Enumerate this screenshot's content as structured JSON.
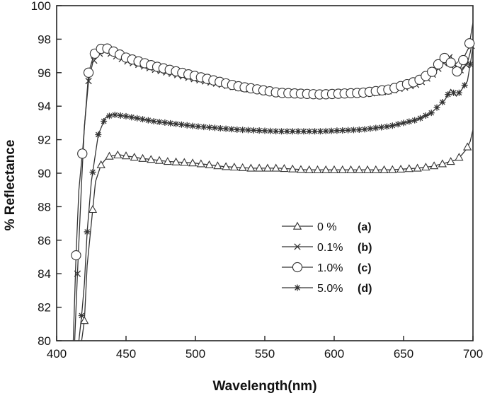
{
  "chart_data": {
    "type": "line",
    "title": "",
    "xlabel": "Wavelength(nm)",
    "ylabel": "% Reflectance",
    "xlim": [
      400,
      700
    ],
    "ylim": [
      80,
      100
    ],
    "xticks": [
      400,
      450,
      500,
      550,
      600,
      650,
      700
    ],
    "yticks": [
      80,
      82,
      84,
      86,
      88,
      90,
      92,
      94,
      96,
      98,
      100
    ],
    "grid": false,
    "legend_position": "bottom-center",
    "series": [
      {
        "name": "0 %",
        "tag": "(a)",
        "marker": "triangle",
        "color": "#333333",
        "x": [
          415,
          418,
          420,
          422,
          425,
          428,
          432,
          437,
          445,
          460,
          480,
          500,
          520,
          540,
          560,
          580,
          600,
          620,
          640,
          660,
          670,
          680,
          688,
          692,
          695,
          698,
          700
        ],
        "y": [
          80,
          80,
          81.2,
          84.5,
          87.0,
          89.5,
          90.5,
          91.0,
          91.1,
          90.9,
          90.7,
          90.6,
          90.4,
          90.3,
          90.3,
          90.2,
          90.2,
          90.2,
          90.2,
          90.3,
          90.4,
          90.6,
          90.8,
          91.1,
          91.4,
          91.9,
          92.6
        ]
      },
      {
        "name": "0.1%",
        "tag": "(b)",
        "marker": "x",
        "color": "#333333",
        "x": [
          413,
          415,
          418,
          420,
          423,
          426,
          430,
          435,
          440,
          450,
          470,
          500,
          530,
          560,
          590,
          620,
          640,
          660,
          670,
          678,
          684,
          688,
          692,
          696,
          698,
          700
        ],
        "y": [
          80,
          84.0,
          89.5,
          92.8,
          95.5,
          96.6,
          97.1,
          97.3,
          97.1,
          96.7,
          96.2,
          95.6,
          95.1,
          94.8,
          94.7,
          94.7,
          94.9,
          95.3,
          95.8,
          96.5,
          97.0,
          96.3,
          96.1,
          96.6,
          97.2,
          98.0
        ]
      },
      {
        "name": "1.0%",
        "tag": "(c)",
        "marker": "circle",
        "color": "#333333",
        "x": [
          412,
          414,
          416,
          419,
          423,
          427,
          431,
          435,
          440,
          450,
          470,
          500,
          530,
          560,
          590,
          620,
          640,
          660,
          670,
          678,
          682,
          686,
          690,
          694,
          697,
          700
        ],
        "y": [
          80,
          85.1,
          89.0,
          91.6,
          96.0,
          97.1,
          97.4,
          97.5,
          97.3,
          96.9,
          96.4,
          95.8,
          95.2,
          94.8,
          94.7,
          94.8,
          95.0,
          95.5,
          96.0,
          96.8,
          97.0,
          96.2,
          96.0,
          97.0,
          97.5,
          99.0
        ]
      },
      {
        "name": "5.0%",
        "tag": "(d)",
        "marker": "asterisk",
        "color": "#333333",
        "x": [
          416,
          418,
          420,
          422,
          425,
          430,
          435,
          440,
          450,
          470,
          500,
          530,
          560,
          590,
          620,
          640,
          660,
          670,
          680,
          684,
          688,
          692,
          696,
          700
        ],
        "y": [
          80,
          81.5,
          83.4,
          86.5,
          89.5,
          92.3,
          93.3,
          93.5,
          93.4,
          93.1,
          92.8,
          92.6,
          92.5,
          92.5,
          92.6,
          92.8,
          93.2,
          93.6,
          94.4,
          95.0,
          94.6,
          95.0,
          95.5,
          97.5
        ]
      }
    ]
  }
}
